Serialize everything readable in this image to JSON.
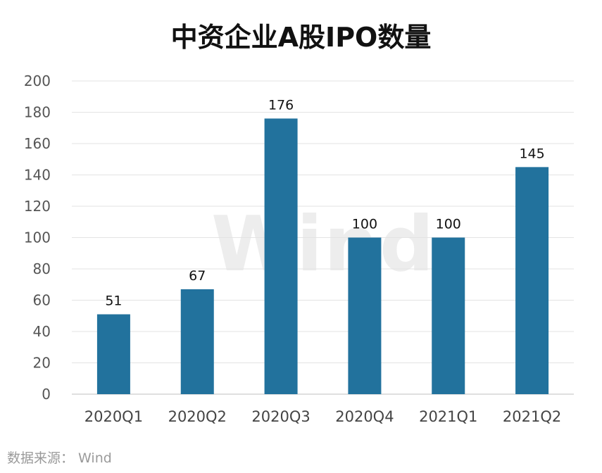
{
  "chart_data": {
    "type": "bar",
    "title": "中资企业A股IPO数量",
    "categories": [
      "2020Q1",
      "2020Q2",
      "2020Q3",
      "2020Q4",
      "2021Q1",
      "2021Q2"
    ],
    "values": [
      51,
      67,
      176,
      100,
      100,
      145
    ],
    "ylim": [
      0,
      200
    ],
    "yticks": [
      0,
      20,
      40,
      60,
      80,
      100,
      120,
      140,
      160,
      180,
      200
    ],
    "grid": true,
    "bar_color": "#22729d"
  },
  "source": "数据来源：  Wind",
  "watermark": "Wind"
}
